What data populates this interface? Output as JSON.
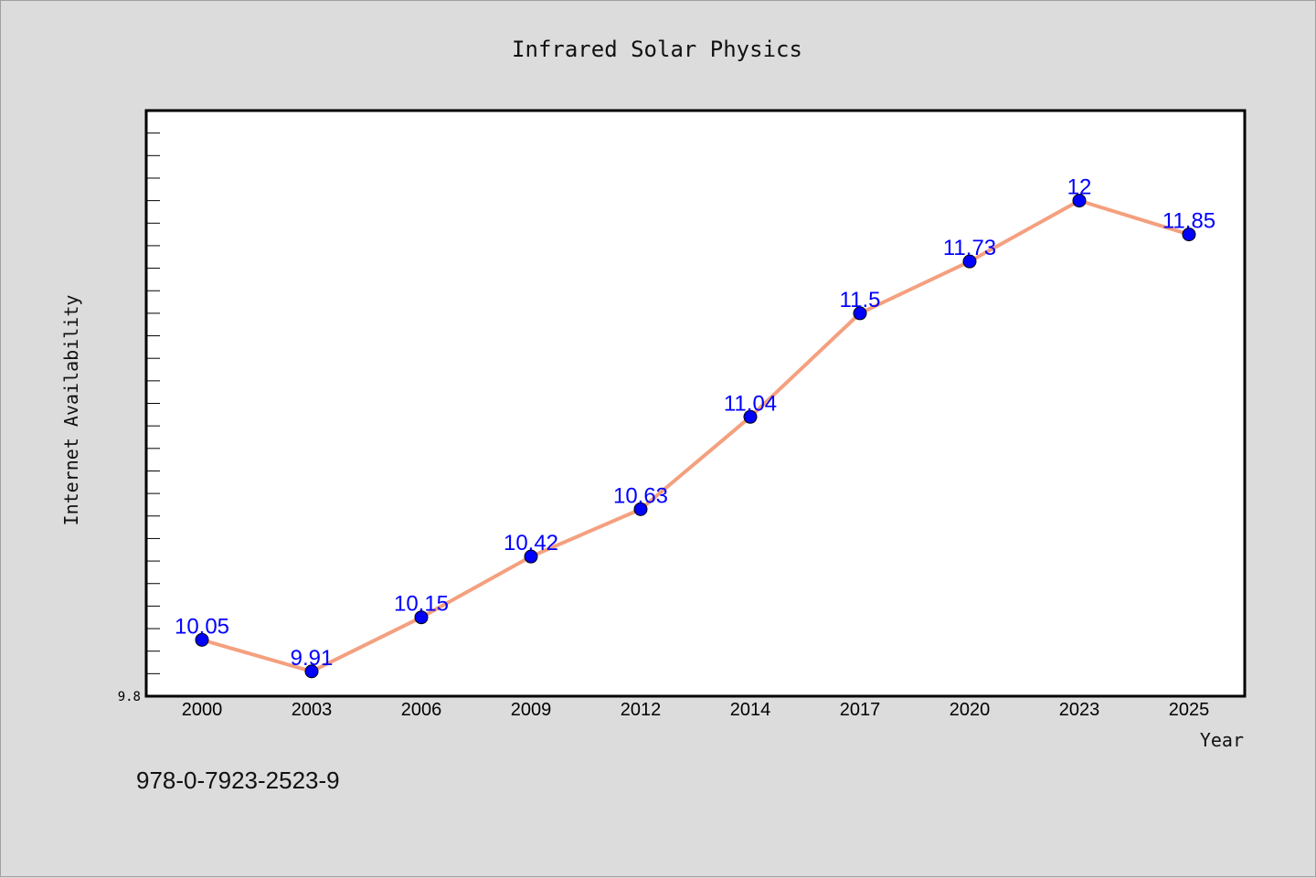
{
  "chart_data": {
    "type": "line",
    "title": "Infrared Solar Physics",
    "xlabel": "Year",
    "ylabel": "Internet Availability",
    "categories": [
      "2000",
      "2003",
      "2006",
      "2009",
      "2012",
      "2014",
      "2017",
      "2020",
      "2023",
      "2025"
    ],
    "series": [
      {
        "values": [
          10.05,
          9.91,
          10.15,
          10.42,
          10.63,
          11.04,
          11.5,
          11.73,
          12,
          11.85
        ]
      }
    ],
    "data_labels": [
      "10.05",
      "9.91",
      "10.15",
      "10.42",
      "10.63",
      "11.04",
      "11.5",
      "11.73",
      "12",
      "11.85"
    ],
    "y_tick_labels": [
      "9.8"
    ],
    "ylim": [
      9.8,
      12.4
    ],
    "grid": false,
    "legend": "none",
    "colors": {
      "line": "#f4a07f",
      "marker": "#0000ff",
      "data_label": "#0000ff",
      "background": "#dcdcdc",
      "plot_area": "#ffffff"
    }
  },
  "footer": {
    "isbn": "978-0-7923-2523-9"
  }
}
